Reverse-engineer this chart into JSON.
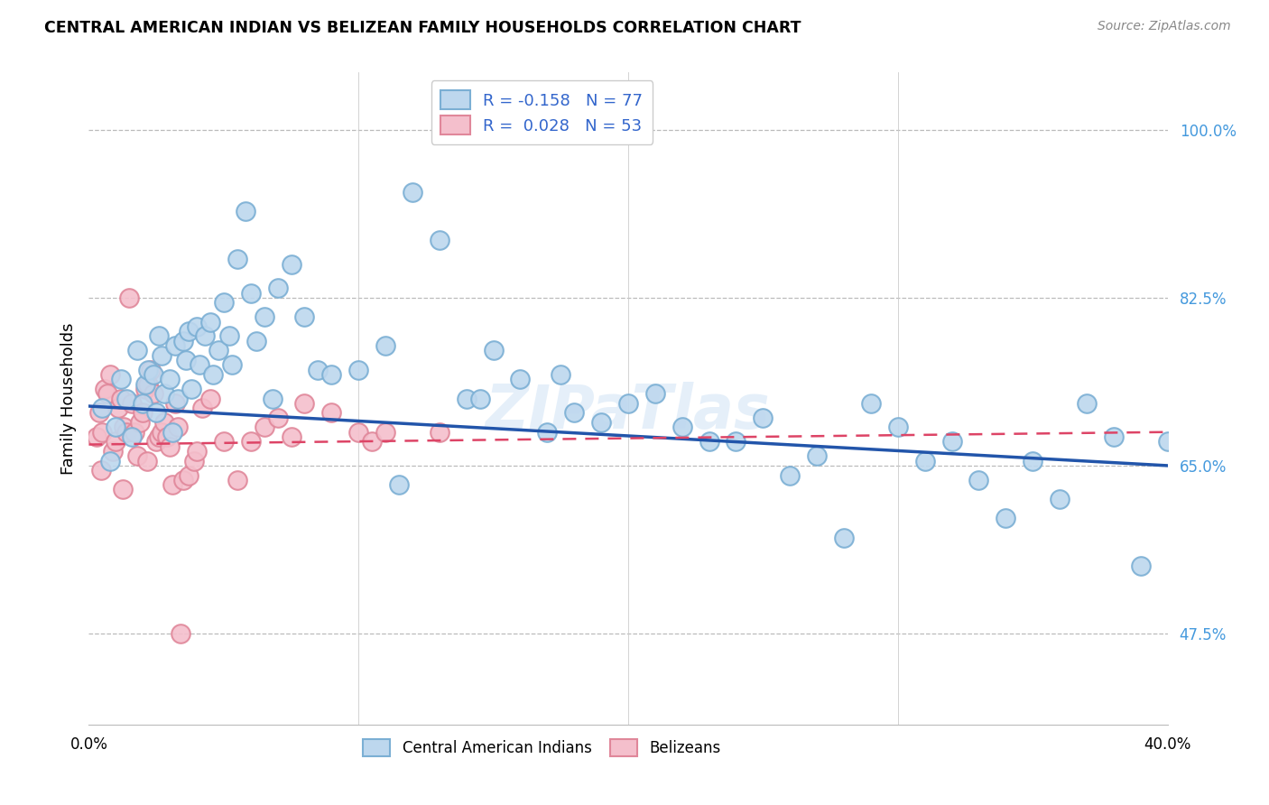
{
  "title": "CENTRAL AMERICAN INDIAN VS BELIZEAN FAMILY HOUSEHOLDS CORRELATION CHART",
  "source": "Source: ZipAtlas.com",
  "ylabel": "Family Households",
  "yticks": [
    47.5,
    65.0,
    82.5,
    100.0
  ],
  "ytick_labels": [
    "47.5%",
    "65.0%",
    "82.5%",
    "100.0%"
  ],
  "xmin": 0.0,
  "xmax": 40.0,
  "ymin": 38.0,
  "ymax": 106.0,
  "blue_color": "#7BAFD4",
  "blue_fill": "#BDD7EE",
  "pink_color": "#E0879A",
  "pink_fill": "#F4BFCC",
  "trend_blue": "#2255AA",
  "trend_pink": "#DD4466",
  "blue_scatter_x": [
    0.5,
    0.8,
    1.0,
    1.2,
    1.4,
    1.6,
    1.8,
    2.0,
    2.1,
    2.2,
    2.4,
    2.5,
    2.6,
    2.7,
    2.8,
    3.0,
    3.1,
    3.2,
    3.3,
    3.5,
    3.6,
    3.7,
    3.8,
    4.0,
    4.1,
    4.3,
    4.5,
    4.6,
    4.8,
    5.0,
    5.2,
    5.5,
    5.8,
    6.0,
    6.2,
    6.5,
    7.0,
    7.5,
    8.0,
    8.5,
    9.0,
    10.0,
    11.0,
    12.0,
    13.0,
    14.0,
    15.0,
    16.0,
    17.0,
    18.0,
    19.0,
    20.0,
    21.0,
    22.0,
    23.0,
    24.0,
    25.0,
    27.0,
    28.0,
    29.0,
    30.0,
    31.0,
    32.0,
    33.0,
    34.0,
    35.0,
    36.0,
    37.0,
    38.0,
    39.0,
    40.0,
    5.3,
    6.8,
    11.5,
    14.5,
    17.5,
    26.0
  ],
  "blue_scatter_y": [
    71.0,
    65.5,
    69.0,
    74.0,
    72.0,
    68.0,
    77.0,
    71.5,
    73.5,
    75.0,
    74.5,
    70.5,
    78.5,
    76.5,
    72.5,
    74.0,
    68.5,
    77.5,
    72.0,
    78.0,
    76.0,
    79.0,
    73.0,
    79.5,
    75.5,
    78.5,
    80.0,
    74.5,
    77.0,
    82.0,
    78.5,
    86.5,
    91.5,
    83.0,
    78.0,
    80.5,
    83.5,
    86.0,
    80.5,
    75.0,
    74.5,
    75.0,
    77.5,
    93.5,
    88.5,
    72.0,
    77.0,
    74.0,
    68.5,
    70.5,
    69.5,
    71.5,
    72.5,
    69.0,
    67.5,
    67.5,
    70.0,
    66.0,
    57.5,
    71.5,
    69.0,
    65.5,
    67.5,
    63.5,
    59.5,
    65.5,
    61.5,
    71.5,
    68.0,
    54.5,
    67.5,
    75.5,
    72.0,
    63.0,
    72.0,
    74.5,
    64.0
  ],
  "pink_scatter_x": [
    0.3,
    0.4,
    0.5,
    0.6,
    0.7,
    0.8,
    0.9,
    1.0,
    1.1,
    1.2,
    1.3,
    1.4,
    1.5,
    1.6,
    1.7,
    1.8,
    1.9,
    2.0,
    2.1,
    2.2,
    2.3,
    2.4,
    2.5,
    2.6,
    2.7,
    2.8,
    2.9,
    3.0,
    3.1,
    3.2,
    3.3,
    3.5,
    3.7,
    3.9,
    4.0,
    4.2,
    4.5,
    5.0,
    5.5,
    6.0,
    6.5,
    7.0,
    7.5,
    8.0,
    9.0,
    10.0,
    10.5,
    11.0,
    13.0,
    0.45,
    1.25,
    2.15,
    3.4
  ],
  "pink_scatter_y": [
    68.0,
    70.5,
    68.5,
    73.0,
    72.5,
    74.5,
    66.5,
    67.5,
    71.0,
    72.0,
    69.0,
    68.5,
    82.5,
    71.5,
    68.5,
    66.0,
    69.5,
    70.5,
    73.0,
    73.5,
    75.0,
    72.5,
    67.5,
    68.0,
    68.5,
    69.5,
    68.0,
    67.0,
    63.0,
    71.5,
    69.0,
    63.5,
    64.0,
    65.5,
    66.5,
    71.0,
    72.0,
    67.5,
    63.5,
    67.5,
    69.0,
    70.0,
    68.0,
    71.5,
    70.5,
    68.5,
    67.5,
    68.5,
    68.5,
    64.5,
    62.5,
    65.5,
    47.5
  ]
}
